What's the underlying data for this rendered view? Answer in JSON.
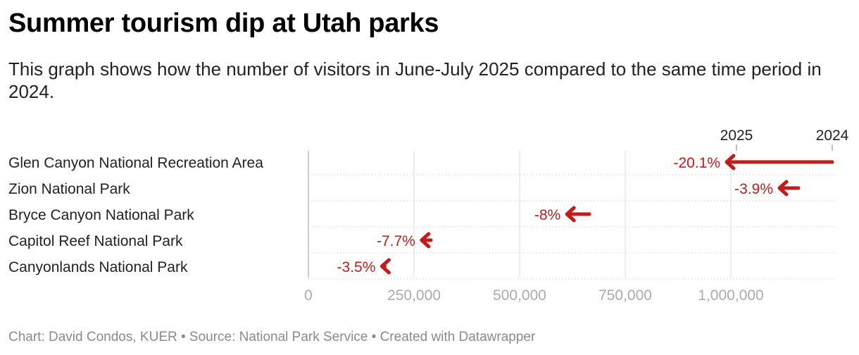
{
  "header": {
    "title": "Summer tourism dip at Utah parks",
    "subtitle": "This graph shows how the number of visitors in June-July 2025 compared to the same time period in 2024."
  },
  "footer": {
    "text": "Chart: David Condos, KUER • Source: National Park Service • Created with Datawrapper"
  },
  "colors": {
    "arrow": "#c41a1a",
    "grid": "#dddddd",
    "tick_text": "#aaaaaa"
  },
  "chart_data": {
    "type": "arrow",
    "title": "Summer tourism dip at Utah parks",
    "legend": [
      "2025",
      "2024"
    ],
    "legend_placement": "top-right",
    "x_ticks": [
      "0",
      "250,000",
      "500,000",
      "750,000",
      "1,000,000"
    ],
    "xlim": [
      0,
      1250000
    ],
    "grid": true,
    "categories": [
      "Glen Canyon National Recreation Area",
      "Zion National Park",
      "Bryce Canyon National Park",
      "Capitol Reef National Park",
      "Canyonlands National Park"
    ],
    "series": [
      {
        "name": "2024",
        "values": [
          1240000,
          1160000,
          665000,
          290000,
          180000
        ]
      },
      {
        "name": "2025",
        "values": [
          990000,
          1115000,
          612000,
          268000,
          174000
        ]
      }
    ],
    "change_labels": [
      "-20.1%",
      "-3.9%",
      "-8%",
      "-7.7%",
      "-3.5%"
    ]
  }
}
